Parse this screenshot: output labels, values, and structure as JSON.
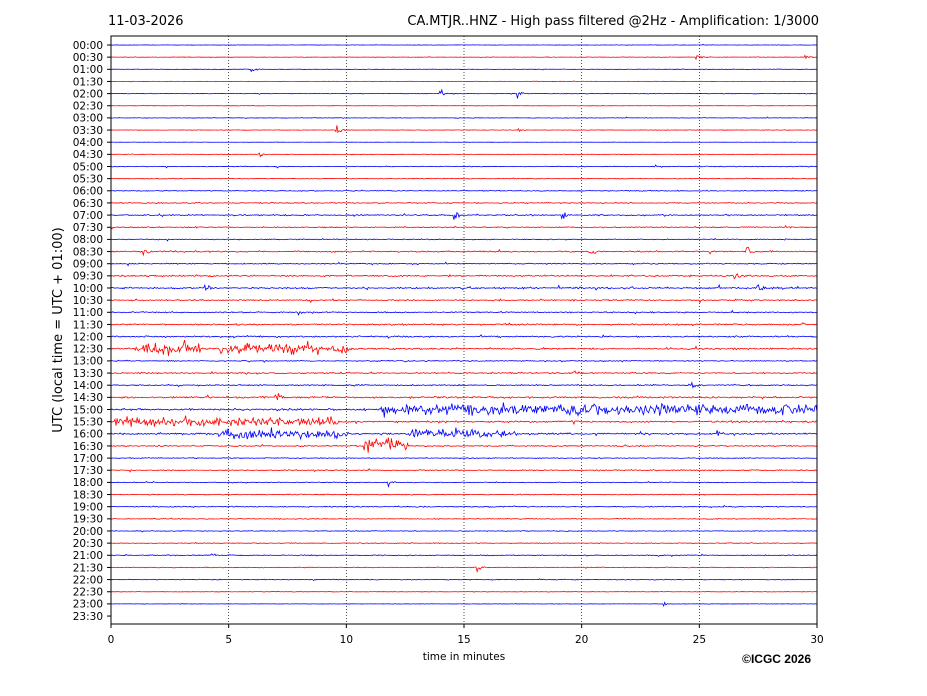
{
  "chart_data": {
    "type": "line",
    "date": "11-03-2026",
    "title": "CA.MTJR..HNZ - High pass filtered @2Hz - Amplification: 1/3000",
    "xlabel": "time in minutes",
    "ylabel": "UTC (local time = UTC + 01:00)",
    "xlim": [
      0,
      30
    ],
    "x_ticks": [
      0,
      5,
      10,
      15,
      20,
      25,
      30
    ],
    "grid_x": true,
    "trace_colors": [
      "#0000ff",
      "#ff0000"
    ],
    "rows": [
      {
        "label": "00:00",
        "level": 0.15
      },
      {
        "label": "00:30",
        "level": 0.2
      },
      {
        "label": "01:00",
        "level": 0.2
      },
      {
        "label": "01:30",
        "level": 0.2
      },
      {
        "label": "02:00",
        "level": 0.25
      },
      {
        "label": "02:30",
        "level": 0.15
      },
      {
        "label": "03:00",
        "level": 0.2
      },
      {
        "label": "03:30",
        "level": 0.2
      },
      {
        "label": "04:00",
        "level": 0.1
      },
      {
        "label": "04:30",
        "level": 0.2
      },
      {
        "label": "05:00",
        "level": 0.3
      },
      {
        "label": "05:30",
        "level": 0.25
      },
      {
        "label": "06:00",
        "level": 0.35
      },
      {
        "label": "06:30",
        "level": 0.45
      },
      {
        "label": "07:00",
        "level": 0.5
      },
      {
        "label": "07:30",
        "level": 0.45
      },
      {
        "label": "08:00",
        "level": 0.4
      },
      {
        "label": "08:30",
        "level": 0.55
      },
      {
        "label": "09:00",
        "level": 0.45
      },
      {
        "label": "09:30",
        "level": 0.6
      },
      {
        "label": "10:00",
        "level": 0.65
      },
      {
        "label": "10:30",
        "level": 0.55
      },
      {
        "label": "11:00",
        "level": 0.5
      },
      {
        "label": "11:30",
        "level": 0.6
      },
      {
        "label": "12:00",
        "level": 0.6
      },
      {
        "label": "12:30",
        "level": 0.65
      },
      {
        "label": "13:00",
        "level": 0.45
      },
      {
        "label": "13:30",
        "level": 0.55
      },
      {
        "label": "14:00",
        "level": 0.5
      },
      {
        "label": "14:30",
        "level": 0.7
      },
      {
        "label": "15:00",
        "level": 0.75
      },
      {
        "label": "15:30",
        "level": 0.7
      },
      {
        "label": "16:00",
        "level": 0.7
      },
      {
        "label": "16:30",
        "level": 0.5
      },
      {
        "label": "17:00",
        "level": 0.35
      },
      {
        "label": "17:30",
        "level": 0.45
      },
      {
        "label": "18:00",
        "level": 0.35
      },
      {
        "label": "18:30",
        "level": 0.35
      },
      {
        "label": "19:00",
        "level": 0.4
      },
      {
        "label": "19:30",
        "level": 0.35
      },
      {
        "label": "20:00",
        "level": 0.3
      },
      {
        "label": "20:30",
        "level": 0.3
      },
      {
        "label": "21:00",
        "level": 0.4
      },
      {
        "label": "21:30",
        "level": 0.35
      },
      {
        "label": "22:00",
        "level": 0.3
      },
      {
        "label": "22:30",
        "level": 0.2
      },
      {
        "label": "23:00",
        "level": 0.15
      },
      {
        "label": "23:30",
        "level": 0
      }
    ],
    "events": [
      {
        "row": 1,
        "x": 24.9,
        "amp": 3
      },
      {
        "row": 1,
        "x": 29.5,
        "amp": 3
      },
      {
        "row": 2,
        "x": 6.0,
        "amp": 3
      },
      {
        "row": 4,
        "x": 14.0,
        "amp": 4
      },
      {
        "row": 4,
        "x": 17.3,
        "amp": 4
      },
      {
        "row": 7,
        "x": 9.6,
        "amp": 5
      },
      {
        "row": 7,
        "x": 17.3,
        "amp": 3
      },
      {
        "row": 9,
        "x": 6.3,
        "amp": 3
      },
      {
        "row": 14,
        "x": 14.6,
        "amp": 5
      },
      {
        "row": 14,
        "x": 19.2,
        "amp": 5
      },
      {
        "row": 17,
        "x": 1.4,
        "amp": 5
      },
      {
        "row": 17,
        "x": 20.3,
        "amp": 6
      },
      {
        "row": 17,
        "x": 27.0,
        "amp": 5
      },
      {
        "row": 19,
        "x": 26.5,
        "amp": 6
      },
      {
        "row": 20,
        "x": 4.0,
        "amp": 6
      },
      {
        "row": 20,
        "x": 27.5,
        "amp": 6
      },
      {
        "row": 22,
        "x": 8.0,
        "amp": 5
      },
      {
        "row": 25,
        "x": 1.0,
        "amp": 7,
        "dur": 2.8
      },
      {
        "row": 25,
        "x": 4.6,
        "amp": 7,
        "dur": 5.6
      },
      {
        "row": 27,
        "x": 19.7,
        "amp": 5
      },
      {
        "row": 28,
        "x": 24.7,
        "amp": 5
      },
      {
        "row": 29,
        "x": 7.0,
        "amp": 6
      },
      {
        "row": 30,
        "x": 11.5,
        "amp": 6,
        "dur": 18.5
      },
      {
        "row": 31,
        "x": 0.2,
        "amp": 5,
        "dur": 9.5
      },
      {
        "row": 32,
        "x": 4.6,
        "amp": 5,
        "dur": 5.5
      },
      {
        "row": 32,
        "x": 12.8,
        "amp": 5,
        "dur": 4.5
      },
      {
        "row": 32,
        "x": 25.8,
        "amp": 5
      },
      {
        "row": 33,
        "x": 10.8,
        "amp": 7,
        "dur": 1.8
      },
      {
        "row": 36,
        "x": 11.8,
        "amp": 4
      },
      {
        "row": 42,
        "x": 4.2,
        "amp": 5
      },
      {
        "row": 43,
        "x": 15.6,
        "amp": 4
      },
      {
        "row": 46,
        "x": 23.5,
        "amp": 3
      }
    ],
    "copyright": "©ICGC 2026"
  }
}
